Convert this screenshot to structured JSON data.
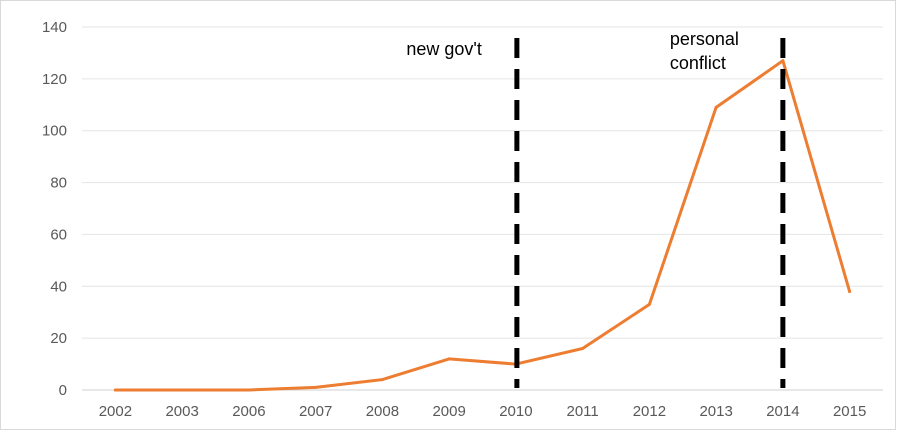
{
  "chart_data": {
    "type": "line",
    "title": "",
    "xlabel": "",
    "ylabel": "",
    "categories": [
      "2002",
      "2003",
      "2006",
      "2007",
      "2008",
      "2009",
      "2010",
      "2011",
      "2012",
      "2013",
      "2014",
      "2015"
    ],
    "series": [
      {
        "values": [
          0,
          0,
          0,
          1,
          4,
          12,
          10,
          16,
          33,
          109,
          127,
          38
        ],
        "color": "#ed7d31"
      }
    ],
    "ylim": [
      0,
      140
    ],
    "yticks": [
      0,
      20,
      40,
      60,
      80,
      100,
      120,
      140
    ],
    "grid": true,
    "legend": "none",
    "annotations": [
      {
        "category": "2010",
        "lines": [
          "new gov't"
        ],
        "line_color": "#000000",
        "style": "dashed"
      },
      {
        "category": "2014",
        "lines": [
          "personal",
          "conflict"
        ],
        "line_color": "#000000",
        "style": "dashed"
      }
    ]
  }
}
